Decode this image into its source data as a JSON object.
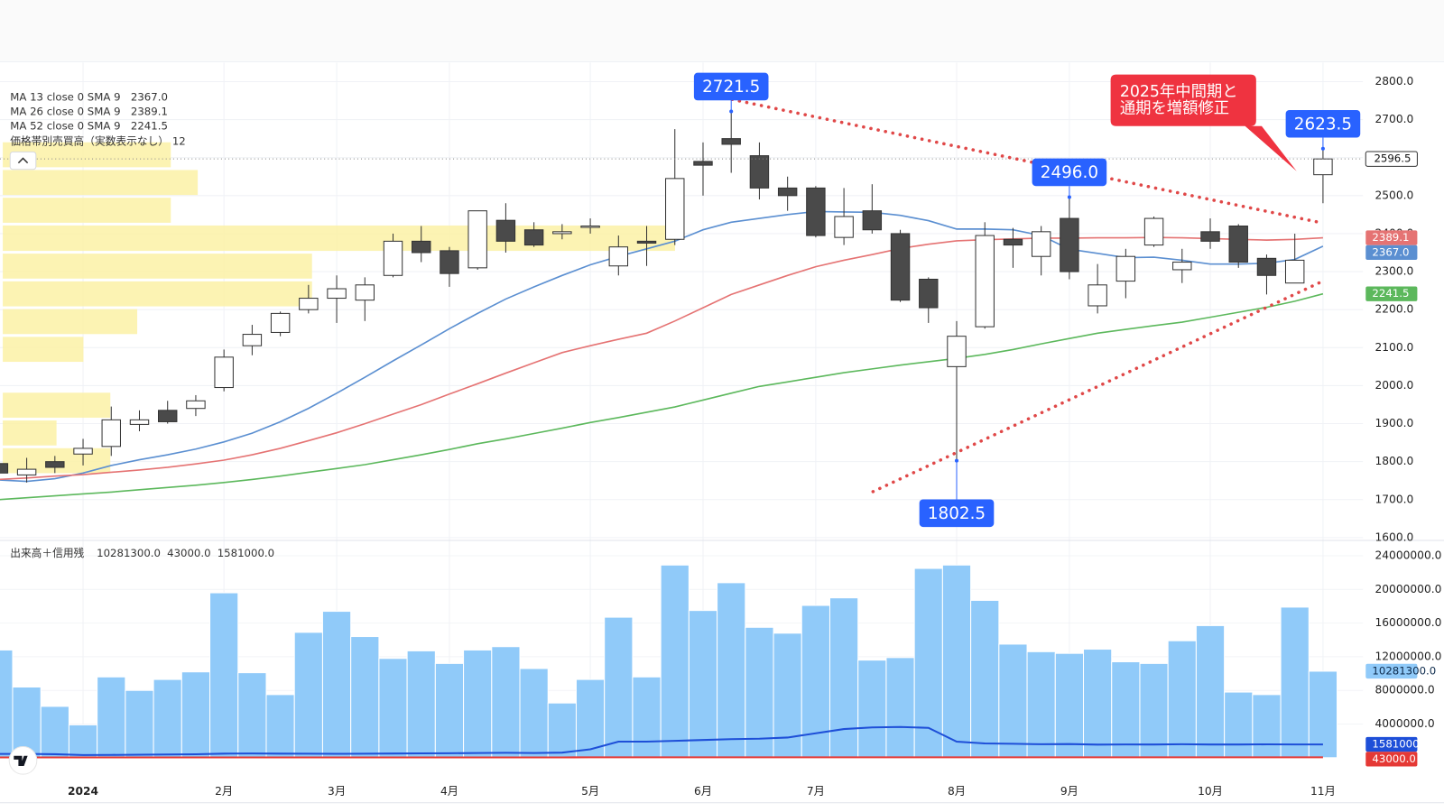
{
  "chart_data": [
    {
      "type": "candlestick",
      "categories": [
        null,
        null,
        null,
        "2024",
        null,
        null,
        null,
        null,
        "2月",
        null,
        null,
        null,
        "3月",
        null,
        null,
        null,
        "4月",
        null,
        null,
        null,
        null,
        "5月",
        null,
        null,
        null,
        "6月",
        null,
        null,
        null,
        "7月",
        null,
        null,
        null,
        null,
        "8月",
        null,
        null,
        null,
        "9月",
        null,
        null,
        null,
        null,
        "10月",
        null,
        null,
        null,
        "11月"
      ],
      "open": [
        1795,
        1765,
        1800,
        1820,
        1840,
        1898,
        1935,
        1940,
        1995,
        2105,
        2140,
        2200,
        2230,
        2225,
        2290,
        2380,
        2355,
        2310,
        2435,
        2410,
        2400,
        2420,
        2315,
        2380,
        2385,
        2590,
        2650,
        2605,
        2520,
        2520,
        2390,
        2460,
        2400,
        2280,
        2050,
        2155,
        2385,
        2340,
        2440,
        2210,
        2275,
        2370,
        2305,
        2405,
        2420,
        2335,
        2270,
        2555
      ],
      "high": [
        1810,
        1810,
        1815,
        1860,
        1945,
        1935,
        1960,
        1975,
        2095,
        2160,
        2195,
        2265,
        2290,
        2285,
        2400,
        2420,
        2365,
        2460,
        2480,
        2430,
        2425,
        2440,
        2395,
        2420,
        2675,
        2640,
        2721.5,
        2640,
        2550,
        2525,
        2520,
        2530,
        2410,
        2285,
        2170,
        2430,
        2415,
        2420,
        2496,
        2320,
        2360,
        2445,
        2360,
        2440,
        2425,
        2345,
        2400,
        2623.5
      ],
      "low": [
        1765,
        1745,
        1770,
        1790,
        1815,
        1880,
        1900,
        1920,
        1985,
        2080,
        2130,
        2190,
        2165,
        2170,
        2285,
        2325,
        2260,
        2305,
        2350,
        2365,
        2385,
        2400,
        2290,
        2315,
        2370,
        2500,
        2560,
        2490,
        2460,
        2390,
        2370,
        2400,
        2220,
        2165,
        1802.5,
        2150,
        2310,
        2290,
        2280,
        2190,
        2230,
        2365,
        2270,
        2360,
        2310,
        2240,
        2270,
        2480
      ],
      "close": [
        1770,
        1780,
        1785,
        1835,
        1910,
        1910,
        1905,
        1960,
        2075,
        2135,
        2190,
        2230,
        2255,
        2265,
        2380,
        2350,
        2295,
        2460,
        2380,
        2370,
        2405,
        2420,
        2365,
        2375,
        2545,
        2580,
        2635,
        2520,
        2500,
        2395,
        2445,
        2410,
        2225,
        2205,
        2130,
        2395,
        2370,
        2405,
        2300,
        2265,
        2340,
        2440,
        2325,
        2380,
        2325,
        2290,
        2330,
        2596.5
      ],
      "up_color": "#ffffff",
      "down_color": "#4a4a4a",
      "ylim": [
        1600,
        2850
      ],
      "yticks": [
        {
          "value": 1600,
          "label": "1600.0"
        },
        {
          "value": 1700,
          "label": "1700.0"
        },
        {
          "value": 1800,
          "label": "1800.0"
        },
        {
          "value": 1900,
          "label": "1900.0"
        },
        {
          "value": 2000,
          "label": "2000.0"
        },
        {
          "value": 2100,
          "label": "2100.0"
        },
        {
          "value": 2200,
          "label": "2200.0"
        },
        {
          "value": 2300,
          "label": "2300.0"
        },
        {
          "value": 2400,
          "label": "2400.0"
        },
        {
          "value": 2500,
          "label": "2500.0"
        },
        {
          "value": 2600,
          "label": "2600.0"
        },
        {
          "value": 2700,
          "label": "2700.0"
        },
        {
          "value": 2800,
          "label": "2800.0"
        }
      ],
      "grid": true,
      "current_price": {
        "value": 2596.5,
        "label": "2596.5"
      },
      "series": [
        {
          "name": "MA 13 close 0 SMA 9",
          "color": "#5b8fd1",
          "legend_value": "2367.0",
          "values": [
            1752,
            1748,
            1755,
            1770,
            1790,
            1805,
            1818,
            1833,
            1852,
            1875,
            1905,
            1940,
            1980,
            2022,
            2065,
            2107,
            2150,
            2190,
            2228,
            2260,
            2290,
            2318,
            2340,
            2360,
            2380,
            2410,
            2430,
            2440,
            2450,
            2458,
            2457,
            2456,
            2448,
            2434,
            2412,
            2412,
            2410,
            2395,
            2359,
            2348,
            2337,
            2338,
            2330,
            2320,
            2320,
            2322,
            2332,
            2367.0
          ]
        },
        {
          "name": "MA 26 close 0 SMA 9",
          "color": "#e57373",
          "legend_value": "2389.1",
          "values": [
            1753,
            1757,
            1762,
            1766,
            1772,
            1778,
            1785,
            1794,
            1804,
            1818,
            1835,
            1855,
            1876,
            1900,
            1925,
            1950,
            1978,
            2005,
            2033,
            2060,
            2087,
            2105,
            2122,
            2138,
            2170,
            2205,
            2240,
            2265,
            2290,
            2313,
            2330,
            2345,
            2361,
            2372,
            2381,
            2384,
            2386,
            2388,
            2388,
            2389,
            2389,
            2390,
            2389,
            2387,
            2385,
            2383,
            2385,
            2389.1
          ]
        },
        {
          "name": "MA 52 close 0 SMA 9",
          "color": "#5cb85c",
          "legend_value": "2241.5",
          "values": [
            1700,
            1705,
            1710,
            1715,
            1720,
            1726,
            1732,
            1738,
            1745,
            1753,
            1762,
            1772,
            1782,
            1792,
            1805,
            1818,
            1832,
            1847,
            1860,
            1874,
            1888,
            1903,
            1916,
            1930,
            1944,
            1962,
            1980,
            1998,
            2010,
            2022,
            2034,
            2044,
            2054,
            2063,
            2072,
            2082,
            2095,
            2110,
            2124,
            2138,
            2148,
            2158,
            2167,
            2180,
            2193,
            2206,
            2222,
            2241.5
          ]
        }
      ],
      "volume_profile": {
        "name": "価格帯別売買高（実数表示なし）",
        "rows": 12,
        "color": "#fbf1a6",
        "bins": [
          1766,
          1839,
          1912,
          1985,
          2059,
          2132,
          2205,
          2278,
          2351,
          2425,
          2498,
          2571,
          2644
        ],
        "values": [
          16,
          8,
          16,
          0,
          12,
          20,
          46,
          46,
          100,
          25,
          29,
          25
        ]
      },
      "annotations": [
        {
          "text": "2721.5",
          "value": 2721.5,
          "index": 26
        },
        {
          "text": "2496.0",
          "value": 2496,
          "index": 38
        },
        {
          "text": "1802.5",
          "value": 1802.5,
          "index": 34
        },
        {
          "text": "2623.5",
          "value": 2623.5,
          "index": 47
        }
      ],
      "note": [
        "2025年中間期と",
        "通期を増額修正"
      ]
    },
    {
      "type": "bar",
      "title": "出来高＋信用残",
      "ylim": [
        0,
        25500000
      ],
      "yticks": [
        {
          "value": 4000000,
          "label": "4000000.0"
        },
        {
          "value": 8000000,
          "label": "8000000.0"
        },
        {
          "value": 12000000,
          "label": "12000000.0"
        },
        {
          "value": 16000000,
          "label": "16000000.0"
        },
        {
          "value": 20000000,
          "label": "20000000.0"
        },
        {
          "value": 24000000,
          "label": "24000000.0"
        }
      ],
      "series": [
        {
          "type": "bar",
          "color": "#90caf9",
          "legend_value": "10281300.0",
          "values": [
            12800000,
            8400000,
            6100000,
            3900000,
            9600000,
            8000000,
            9300000,
            10200000,
            19600000,
            10100000,
            7500000,
            14900000,
            17400000,
            14400000,
            11800000,
            12700000,
            11200000,
            12800000,
            13200000,
            10600000,
            6500000,
            9300000,
            16700000,
            9600000,
            22900000,
            17500000,
            20800000,
            15500000,
            14800000,
            18100000,
            19000000,
            11600000,
            11900000,
            22500000,
            22900000,
            18700000,
            13500000,
            12600000,
            12400000,
            12900000,
            11400000,
            11200000,
            13900000,
            15700000,
            7800000,
            7500000,
            17900000,
            10281300
          ]
        },
        {
          "type": "line",
          "color": "#e53935",
          "legend_value": "43000.0",
          "values": [
            35000,
            35000,
            35000,
            35000,
            35000,
            35000,
            35000,
            35000,
            35000,
            35000,
            35000,
            35000,
            35000,
            35000,
            35000,
            35000,
            35000,
            35000,
            35000,
            35000,
            35000,
            45000,
            45000,
            45000,
            45000,
            45000,
            45000,
            45000,
            45000,
            45000,
            45000,
            45000,
            45000,
            45000,
            45000,
            45000,
            45000,
            45000,
            45000,
            45000,
            45000,
            45000,
            45000,
            45000,
            45000,
            45000,
            45000,
            43000
          ]
        },
        {
          "type": "line",
          "color": "#1e4fd8",
          "legend_value": "1581000.0",
          "values": [
            450000,
            450000,
            420000,
            320000,
            330000,
            350000,
            380000,
            400000,
            480000,
            500000,
            480000,
            470000,
            460000,
            470000,
            490000,
            510000,
            530000,
            560000,
            580000,
            560000,
            600000,
            1000000,
            1900000,
            1900000,
            2000000,
            2100000,
            2200000,
            2250000,
            2400000,
            2900000,
            3400000,
            3600000,
            3650000,
            3550000,
            1900000,
            1700000,
            1650000,
            1600000,
            1620000,
            1550000,
            1580000,
            1570000,
            1600000,
            1560000,
            1570000,
            1590000,
            1580000,
            1581000
          ]
        }
      ]
    }
  ]
}
